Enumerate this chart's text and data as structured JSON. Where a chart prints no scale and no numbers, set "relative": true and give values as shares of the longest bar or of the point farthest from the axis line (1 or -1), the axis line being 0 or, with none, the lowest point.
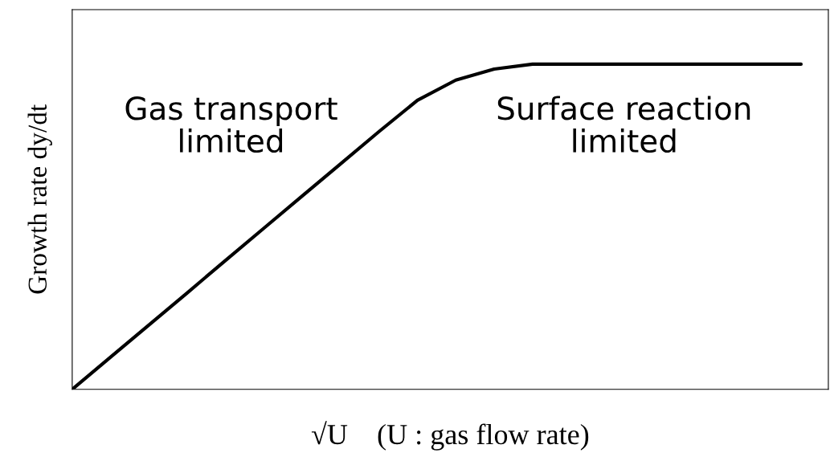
{
  "chart_data": {
    "type": "line",
    "relative": true,
    "xlabel": "√U    (U : gas flow rate)",
    "ylabel": "Growth rate dy/dt",
    "categories": [
      null,
      null,
      null,
      null,
      null,
      null,
      null,
      null,
      null,
      null,
      null,
      null,
      null,
      null,
      null,
      null,
      null,
      null,
      null,
      null
    ],
    "series": [
      {
        "color": "#000000",
        "values": [
          0,
          0.099,
          0.198,
          0.297,
          0.397,
          0.496,
          0.595,
          0.694,
          0.793,
          0.889,
          0.951,
          0.985,
          1,
          1,
          1,
          1,
          1,
          1,
          1,
          1
        ]
      }
    ],
    "annotations": [
      "Gas transport\nlimited",
      "Surface reaction\nlimited"
    ],
    "grid": false,
    "legend": false,
    "marker": "none",
    "line_style": "solid"
  }
}
